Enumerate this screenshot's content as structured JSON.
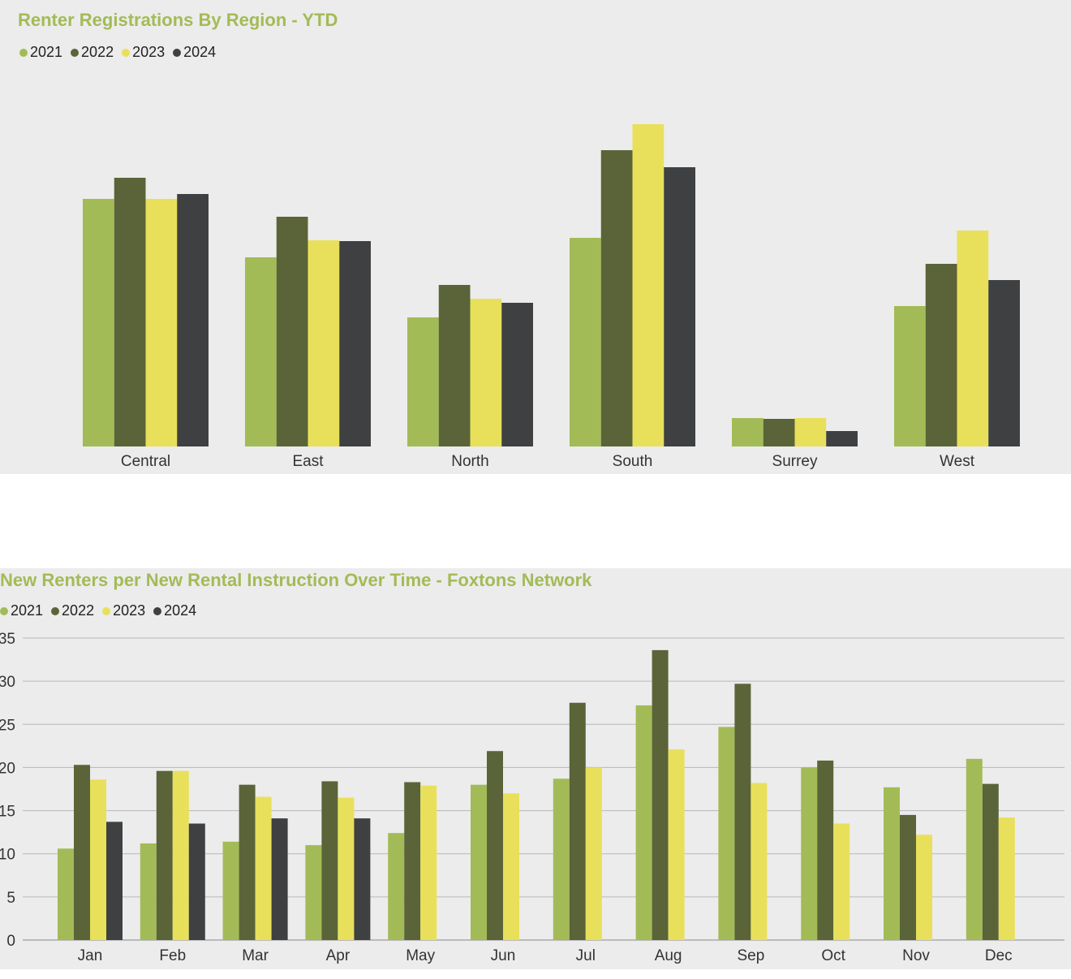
{
  "colors": {
    "2021": "#a3bb56",
    "2022": "#5a6438",
    "2023": "#e8e05a",
    "2024": "#3f4041",
    "title": "#a3bb56"
  },
  "chart_data": [
    {
      "type": "bar",
      "title": "Renter Registrations By Region - YTD",
      "categories": [
        "Central",
        "East",
        "North",
        "South",
        "Surrey",
        "West"
      ],
      "series": [
        {
          "name": "2021",
          "values": [
            305,
            233,
            159,
            257,
            35,
            173
          ]
        },
        {
          "name": "2022",
          "values": [
            331,
            283,
            199,
            365,
            34,
            225
          ]
        },
        {
          "name": "2023",
          "values": [
            305,
            254,
            182,
            397,
            35,
            266
          ]
        },
        {
          "name": "2024",
          "values": [
            311,
            253,
            177,
            344,
            19,
            205
          ]
        }
      ],
      "yaxis_visible": false,
      "ylim": [
        0,
        420
      ],
      "legend_position": "top-left",
      "grid": false
    },
    {
      "type": "bar",
      "title": "New Renters per New Rental Instruction Over Time - Foxtons Network",
      "categories": [
        "Jan",
        "Feb",
        "Mar",
        "Apr",
        "May",
        "Jun",
        "Jul",
        "Aug",
        "Sep",
        "Oct",
        "Nov",
        "Dec"
      ],
      "series": [
        {
          "name": "2021",
          "values": [
            10.6,
            11.2,
            11.4,
            11.0,
            12.4,
            18.0,
            18.7,
            27.2,
            24.7,
            20.0,
            17.7,
            21.0
          ]
        },
        {
          "name": "2022",
          "values": [
            20.3,
            19.6,
            18.0,
            18.4,
            18.3,
            21.9,
            27.5,
            33.6,
            29.7,
            20.8,
            14.5,
            18.1
          ]
        },
        {
          "name": "2023",
          "values": [
            18.6,
            19.6,
            16.6,
            16.5,
            17.9,
            17.0,
            20.0,
            22.1,
            18.2,
            13.5,
            12.2,
            14.2
          ]
        },
        {
          "name": "2024",
          "values": [
            13.7,
            13.5,
            14.1,
            14.1,
            null,
            null,
            null,
            null,
            null,
            null,
            null,
            null
          ]
        }
      ],
      "ylim": [
        0,
        35
      ],
      "yticks": [
        "0",
        "5",
        "10",
        "15",
        "20",
        "25",
        "30",
        "35"
      ],
      "yticks_shown": [
        "0",
        "5",
        "10",
        "15",
        "20",
        "25",
        "30",
        "35"
      ],
      "legend_position": "top-left",
      "grid": true
    }
  ]
}
